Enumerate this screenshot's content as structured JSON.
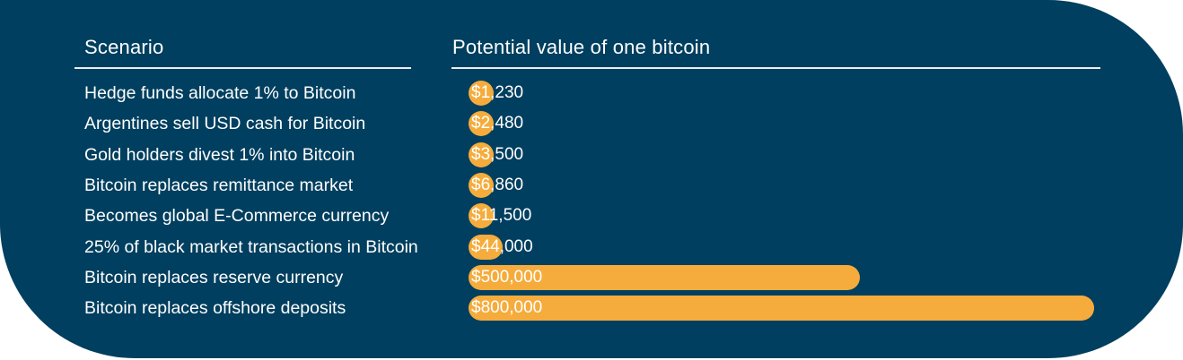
{
  "header": {
    "scenario_label": "Scenario",
    "value_label": "Potential value of one bitcoin"
  },
  "chart_data": {
    "type": "bar",
    "orientation": "horizontal",
    "title": "",
    "xlabel": "Potential value of one bitcoin",
    "ylabel": "Scenario",
    "categories": [
      "Hedge funds allocate 1% to Bitcoin",
      "Argentines sell USD cash for Bitcoin",
      "Gold holders divest 1% into Bitcoin",
      "Bitcoin replaces remittance market",
      "Becomes global E-Commerce currency",
      "25% of black market transactions in Bitcoin",
      "Bitcoin replaces reserve currency",
      "Bitcoin replaces offshore deposits"
    ],
    "values": [
      1230,
      2480,
      3500,
      6860,
      11500,
      44000,
      500000,
      800000
    ],
    "value_labels": [
      "$1,230",
      "$2,480",
      "$3,500",
      "$6,860",
      "$11,500",
      "$44,000",
      "$500,000",
      "$800,000"
    ],
    "xlim": [
      0,
      800000
    ],
    "grid": false,
    "legend": "none",
    "colors": {
      "background": "#003f5f",
      "bar": "#f5ac3c",
      "text": "#ffffff",
      "rule": "#e8eef2"
    }
  }
}
